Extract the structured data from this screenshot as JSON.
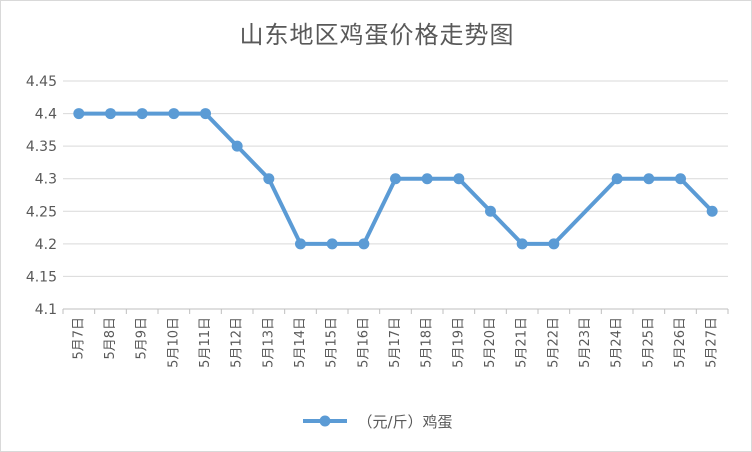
{
  "chart_data": {
    "type": "line",
    "title": "山东地区鸡蛋价格走势图",
    "categories": [
      "5月7日",
      "5月8日",
      "5月9日",
      "5月10日",
      "5月11日",
      "5月12日",
      "5月13日",
      "5月14日",
      "5月15日",
      "5月16日",
      "5月17日",
      "5月18日",
      "5月19日",
      "5月20日",
      "5月21日",
      "5月22日",
      "5月23日",
      "5月24日",
      "5月25日",
      "5月26日",
      "5月27日"
    ],
    "series": [
      {
        "name": "（元/斤）鸡蛋",
        "values": [
          4.4,
          4.4,
          4.4,
          4.4,
          4.4,
          4.35,
          4.3,
          4.2,
          4.2,
          4.2,
          4.3,
          4.3,
          4.3,
          4.25,
          4.2,
          4.2,
          null,
          4.3,
          4.3,
          4.3,
          4.25
        ]
      }
    ],
    "yticks": [
      "4.1",
      "4.15",
      "4.2",
      "4.25",
      "4.3",
      "4.35",
      "4.4",
      "4.45"
    ],
    "ylim": [
      4.1,
      4.45
    ],
    "xlabel": "",
    "ylabel": "",
    "grid": true,
    "legend_position": "bottom",
    "color": "#5b9bd5"
  }
}
